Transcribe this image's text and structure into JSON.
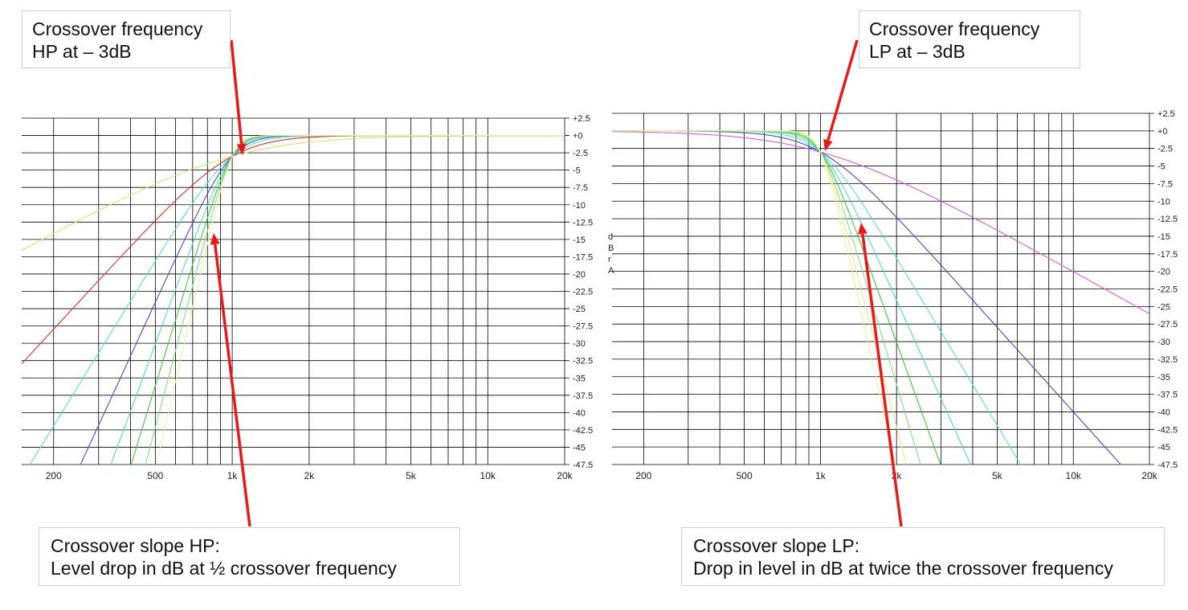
{
  "callouts": {
    "hp_freq": {
      "line1": "Crossover frequency",
      "line2": "HP at – 3dB"
    },
    "lp_freq": {
      "line1": "Crossover frequency",
      "line2": "LP at – 3dB"
    },
    "hp_slope": {
      "line1": "Crossover slope HP:",
      "line2": "Level drop in dB at ½ crossover frequency"
    },
    "lp_slope": {
      "line1": "Crossover slope LP:",
      "line2": "Drop in level in dB at twice the crossover frequency"
    }
  },
  "colors": {
    "arrow": "#e8191a",
    "grid": "#000000",
    "tick_text": "#222222"
  },
  "chart_data": [
    {
      "type": "line",
      "title": "",
      "filter": "HP",
      "x_scale": "log",
      "xlim": [
        150,
        20000
      ],
      "ylim": [
        -47.5,
        2.5
      ],
      "x_tick_labels": [
        [
          "200",
          200
        ],
        [
          "500",
          500
        ],
        [
          "1k",
          1000
        ],
        [
          "2k",
          2000
        ],
        [
          "5k",
          5000
        ],
        [
          "10k",
          10000
        ],
        [
          "20k",
          20000
        ]
      ],
      "y_tick_labels": [
        "+2.5",
        "+0",
        "-2.5",
        "-5",
        "-7.5",
        "-10",
        "-12.5",
        "-15",
        "-17.5",
        "-20",
        "-22.5",
        "-25",
        "-27.5",
        "-30",
        "-32.5",
        "-35",
        "-37.5",
        "-40",
        "-42.5",
        "-45",
        "-47.5"
      ],
      "ylabel": "",
      "grid": true,
      "crossover_hz": 1000,
      "series": [
        {
          "order": 1,
          "color": "#e0e070",
          "slope_db_per_octave": 6
        },
        {
          "order": 2,
          "color": "#d03030",
          "slope_db_per_octave": 12
        },
        {
          "order": 3,
          "color": "#60d8d8",
          "slope_db_per_octave": 18
        },
        {
          "order": 4,
          "color": "#4848c0",
          "slope_db_per_octave": 24
        },
        {
          "order": 5,
          "color": "#58d8c8",
          "slope_db_per_octave": 30
        },
        {
          "order": 6,
          "color": "#40c840",
          "slope_db_per_octave": 36
        },
        {
          "order": 7,
          "color": "#80e080",
          "slope_db_per_octave": 42
        },
        {
          "order": 8,
          "color": "#f0f0a0",
          "slope_db_per_octave": 48
        }
      ]
    },
    {
      "type": "line",
      "title": "",
      "filter": "LP",
      "x_scale": "log",
      "xlim": [
        150,
        20000
      ],
      "ylim": [
        -47.5,
        2.5
      ],
      "x_tick_labels": [
        [
          "200",
          200
        ],
        [
          "500",
          500
        ],
        [
          "1k",
          1000
        ],
        [
          "2k",
          2000
        ],
        [
          "5k",
          5000
        ],
        [
          "10k",
          10000
        ],
        [
          "20k",
          20000
        ]
      ],
      "y_tick_labels": [
        "+2.5",
        "+0",
        "-2.5",
        "-5",
        "-7.5",
        "-10",
        "-12.5",
        "-15",
        "-17.5",
        "-20",
        "-22.5",
        "-25",
        "-27.5",
        "-30",
        "-32.5",
        "-35",
        "-37.5",
        "-40",
        "-42.5",
        "-45",
        "-47.5"
      ],
      "ylabel": "d B r A",
      "grid": true,
      "crossover_hz": 1000,
      "series": [
        {
          "order": 1,
          "color": "#d060d8",
          "slope_db_per_octave": 6
        },
        {
          "order": 2,
          "color": "#4848c0",
          "slope_db_per_octave": 12
        },
        {
          "order": 3,
          "color": "#60d8d8",
          "slope_db_per_octave": 18
        },
        {
          "order": 4,
          "color": "#50d8c0",
          "slope_db_per_octave": 24
        },
        {
          "order": 5,
          "color": "#40c840",
          "slope_db_per_octave": 30
        },
        {
          "order": 6,
          "color": "#80e080",
          "slope_db_per_octave": 36
        },
        {
          "order": 7,
          "color": "#e8e890",
          "slope_db_per_octave": 42
        },
        {
          "order": 8,
          "color": "#f0f0a0",
          "slope_db_per_octave": 48
        }
      ]
    }
  ]
}
